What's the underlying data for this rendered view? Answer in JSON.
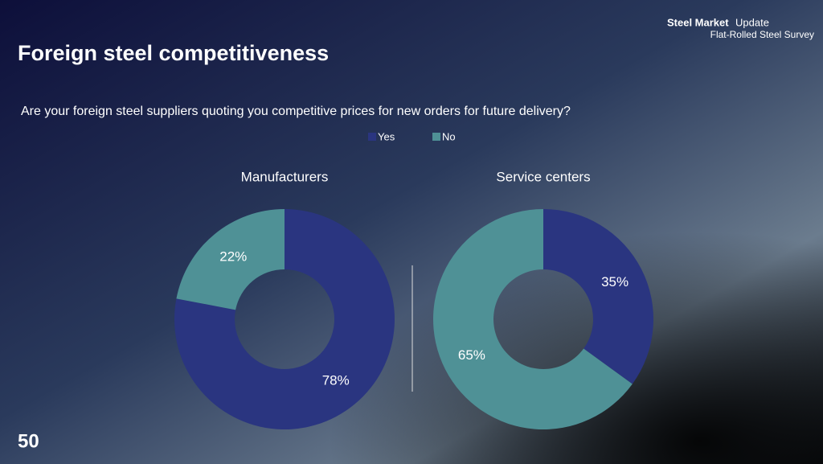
{
  "header": {
    "title": "Foreign steel competitiveness",
    "question": "Are your foreign steel suppliers quoting you competitive prices for new orders for future delivery?",
    "logo": {
      "brand": "Steel Market",
      "brand_suffix": "Update",
      "subtitle": "Flat-Rolled Steel Survey"
    }
  },
  "page_number": "50",
  "chart_data": [
    {
      "type": "donut",
      "title": "Manufacturers",
      "categories": [
        "Yes",
        "No"
      ],
      "values": [
        78,
        22
      ],
      "value_labels": [
        "78%",
        "22%"
      ],
      "colors": [
        "#2a3580",
        "#4f9196"
      ]
    },
    {
      "type": "donut",
      "title": "Service centers",
      "categories": [
        "Yes",
        "No"
      ],
      "values": [
        35,
        65
      ],
      "value_labels": [
        "35%",
        "65%"
      ],
      "colors": [
        "#2a3580",
        "#4f9196"
      ]
    }
  ]
}
